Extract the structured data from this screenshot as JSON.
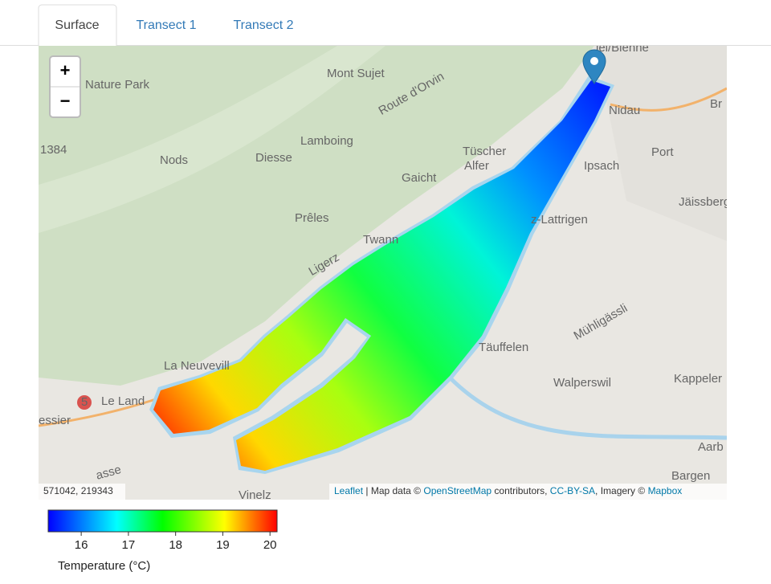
{
  "tabs": [
    "Surface",
    "Transect 1",
    "Transect 2"
  ],
  "zoom": {
    "in": "+",
    "out": "−"
  },
  "map": {
    "labels": [
      "iel/Bienne",
      "Nature Park",
      "Mont Sujet",
      "Route d'Orvin",
      "Lamboing",
      "Nods",
      "Diesse",
      "Gaicht",
      "Tüscher",
      "Alfer",
      "Prêles",
      "Twann",
      "Ligerz",
      "La Neuvevill",
      "Le Land",
      "essier",
      "Nidau",
      "Br",
      "Port",
      "Ipsach",
      "Jäissberg",
      "z-Lattrigen",
      "Täuffelen",
      "Mühligässli",
      "Walperswil",
      "Kappeler",
      "Aarb",
      "Bargen",
      "Vinelz",
      "1384",
      "5",
      "asse"
    ],
    "coordinates": "571042, 219343",
    "attribution": [
      "Leaflet",
      " | Map data © ",
      "OpenStreetMap",
      " contributors, ",
      "CC-BY-SA",
      ", Imagery © ",
      "Mapbox"
    ]
  },
  "legend": {
    "title": "Temperature (°C)",
    "range": [
      15.3,
      20.15
    ],
    "ticks": [
      16,
      17,
      18,
      19,
      20
    ]
  }
}
